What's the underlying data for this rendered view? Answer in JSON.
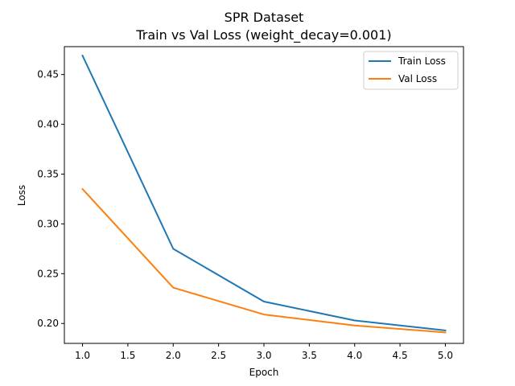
{
  "chart_data": {
    "type": "line",
    "title": "SPR Dataset",
    "subtitle": "Train vs Val Loss (weight_decay=0.001)",
    "xlabel": "Epoch",
    "ylabel": "Loss",
    "x": [
      1,
      2,
      3,
      4,
      5
    ],
    "xlim": [
      0.8,
      5.2
    ],
    "ylim": [
      0.18,
      0.478
    ],
    "xticks": [
      1.0,
      1.5,
      2.0,
      2.5,
      3.0,
      3.5,
      4.0,
      4.5,
      5.0
    ],
    "yticks": [
      0.2,
      0.25,
      0.3,
      0.35,
      0.4,
      0.45
    ],
    "xtick_labels": [
      "1.0",
      "1.5",
      "2.0",
      "2.5",
      "3.0",
      "3.5",
      "4.0",
      "4.5",
      "5.0"
    ],
    "ytick_labels": [
      "0.20",
      "0.25",
      "0.30",
      "0.35",
      "0.40",
      "0.45"
    ],
    "grid": false,
    "legend_position": "top-right",
    "series": [
      {
        "name": "Train Loss",
        "color": "#1f77b4",
        "values": [
          0.469,
          0.275,
          0.222,
          0.203,
          0.193
        ]
      },
      {
        "name": "Val Loss",
        "color": "#ff7f0e",
        "values": [
          0.335,
          0.236,
          0.209,
          0.198,
          0.191
        ]
      }
    ]
  }
}
